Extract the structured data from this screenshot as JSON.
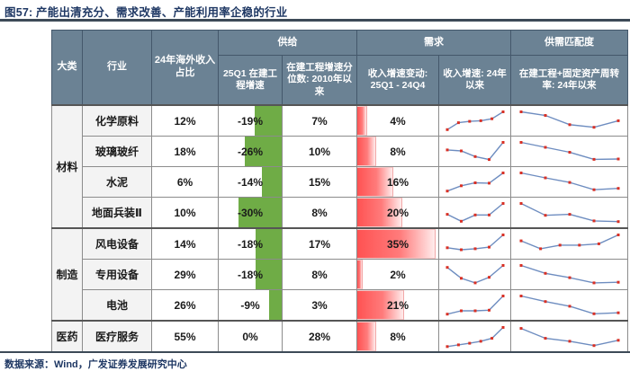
{
  "title": "图57:  产能出清充分、需求改善、产能利用率企稳的行业",
  "footer": {
    "source": "数据来源：Wind，广发证券发展研究中心"
  },
  "chart_data": {
    "type": "table",
    "column_groups": [
      {
        "label": "供给",
        "span": 2
      },
      {
        "label": "需求",
        "span": 2
      },
      {
        "label": "供需匹配度",
        "span": 1
      }
    ],
    "columns": [
      "大类",
      "行业",
      "24年海外收入占比",
      "25Q1 在建工程增速",
      "在建工程增速分位数: 2010年以来",
      "收入增速变动: 25Q1 - 24Q4",
      "收入增速: 24年以来",
      "在建工程+固定资产周转率: 24年以来"
    ],
    "scales": {
      "supply_bar_abs_max": 30,
      "supply_bar_max_frac": 0.68,
      "demand_bar_abs_max": 35,
      "demand_bar_max_frac": 0.95
    },
    "colors": {
      "header_bg": "#6B8294",
      "supply_bar": "#6FAC46",
      "demand_bar_start": "#FF5252",
      "demand_bar_mid": "#FF7B7B",
      "demand_bar_end": "#FFECEC",
      "spark_line": "#6E8DC0",
      "spark_marker": "#D93025",
      "title_color": "#1F3864"
    },
    "row_groups": [
      {
        "category": "材料",
        "rows": [
          {
            "industry": "化学原料",
            "overseas": "12%",
            "supply_growth": "-19%",
            "supply_value": -19,
            "percentile": "7%",
            "demand_change": "4%",
            "demand_value": 4,
            "income_trend": [
              10,
              45,
              52,
              55,
              65,
              100
            ],
            "turnover_trend": [
              100,
              82,
              35,
              22,
              55
            ]
          },
          {
            "industry": "玻璃玻纤",
            "overseas": "18%",
            "supply_growth": "-26%",
            "supply_value": -26,
            "percentile": "10%",
            "demand_change": "8%",
            "demand_value": 8,
            "income_trend": [
              62,
              57,
              28,
              13,
              100
            ],
            "turnover_trend": [
              100,
              75,
              50,
              14,
              16
            ]
          },
          {
            "industry": "水泥",
            "overseas": "6%",
            "supply_growth": "-14%",
            "supply_value": -14,
            "percentile": "15%",
            "demand_change": "16%",
            "demand_value": 16,
            "income_trend": [
              8,
              35,
              50,
              48,
              100
            ],
            "turnover_trend": [
              100,
              75,
              52,
              15,
              22
            ]
          },
          {
            "industry": "地面兵装Ⅱ",
            "overseas": "10%",
            "supply_growth": "-30%",
            "supply_value": -30,
            "percentile": "8%",
            "demand_change": "20%",
            "demand_value": 20,
            "income_trend": [
              45,
              10,
              42,
              42,
              100
            ],
            "turnover_trend": [
              100,
              40,
              45,
              12,
              8
            ]
          }
        ]
      },
      {
        "category": "制造",
        "rows": [
          {
            "industry": "风电设备",
            "overseas": "14%",
            "supply_growth": "-18%",
            "supply_value": -18,
            "percentile": "17%",
            "demand_change": "35%",
            "demand_value": 35,
            "income_trend": [
              35,
              25,
              30,
              38,
              100
            ],
            "turnover_trend": [
              70,
              30,
              48,
              48,
              55,
              100
            ]
          },
          {
            "industry": "专用设备",
            "overseas": "29%",
            "supply_growth": "-18%",
            "supply_value": -18,
            "percentile": "8%",
            "demand_change": "2%",
            "demand_value": 2,
            "income_trend": [
              90,
              35,
              12,
              40,
              100
            ],
            "turnover_trend": [
              100,
              60,
              38,
              12,
              15
            ]
          },
          {
            "industry": "电池",
            "overseas": "26%",
            "supply_growth": "-9%",
            "supply_value": -9,
            "percentile": "3%",
            "demand_change": "21%",
            "demand_value": 21,
            "income_trend": [
              8,
              25,
              25,
              28,
              100
            ],
            "turnover_trend": [
              100,
              72,
              48,
              10,
              15
            ]
          }
        ]
      },
      {
        "category": "医药",
        "rows": [
          {
            "industry": "医疗服务",
            "overseas": "55%",
            "supply_growth": "0%",
            "supply_value": 0,
            "percentile": "28%",
            "demand_change": "8%",
            "demand_value": 8,
            "income_trend": [
              3,
              12,
              20,
              30,
              45,
              100
            ],
            "turnover_trend": [
              95,
              45,
              30,
              8,
              35
            ]
          }
        ]
      }
    ]
  }
}
